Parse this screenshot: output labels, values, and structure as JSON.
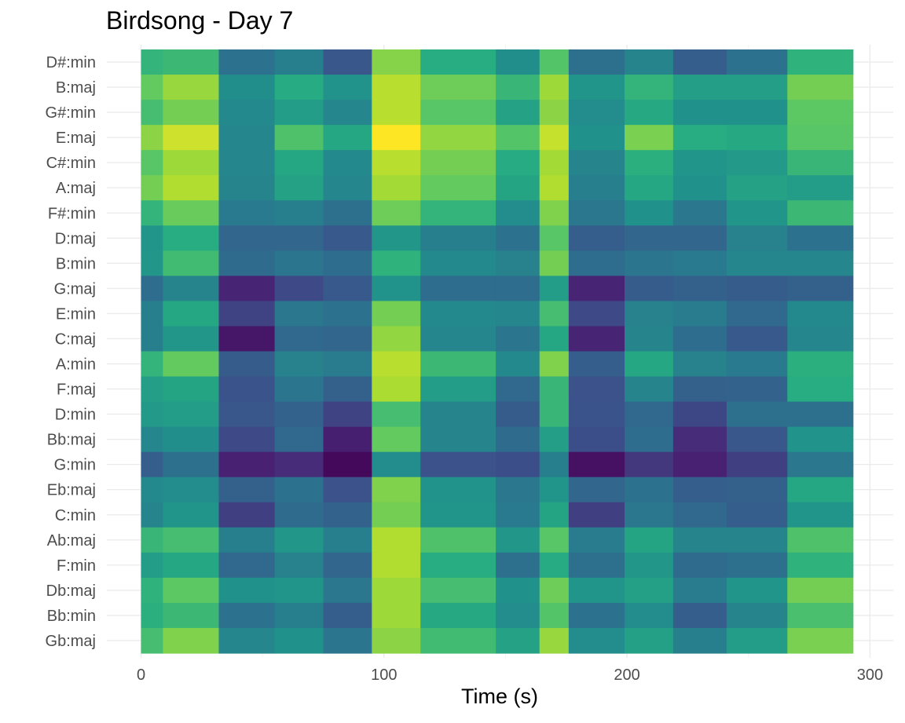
{
  "chart_data": {
    "type": "heatmap",
    "title": "Birdsong - Day 7",
    "xlabel": "Time (s)",
    "ylabel": "",
    "xlim": [
      -2,
      304
    ],
    "x_ticks": [
      0,
      100,
      200,
      300
    ],
    "grid": true,
    "legend": "none",
    "colormap": "viridis",
    "value_range": [
      0,
      1
    ],
    "time_bins": [
      0,
      9,
      32,
      55,
      75,
      95,
      115,
      146,
      164,
      176,
      199,
      219,
      241,
      266,
      293
    ],
    "rows": [
      "D#:min",
      "B:maj",
      "G#:min",
      "E:maj",
      "C#:min",
      "A:maj",
      "F#:min",
      "D:maj",
      "B:min",
      "G:maj",
      "E:min",
      "C:maj",
      "A:min",
      "F:maj",
      "D:min",
      "Bb:maj",
      "G:min",
      "Eb:maj",
      "C:min",
      "Ab:maj",
      "F:min",
      "Db:maj",
      "Bb:min",
      "Gb:maj"
    ],
    "values": [
      [
        0.66,
        0.68,
        0.38,
        0.43,
        0.27,
        0.82,
        0.63,
        0.49,
        0.73,
        0.37,
        0.45,
        0.3,
        0.38,
        0.65
      ],
      [
        0.76,
        0.85,
        0.49,
        0.62,
        0.51,
        0.9,
        0.78,
        0.67,
        0.86,
        0.52,
        0.66,
        0.56,
        0.56,
        0.79
      ],
      [
        0.7,
        0.79,
        0.47,
        0.55,
        0.46,
        0.9,
        0.74,
        0.58,
        0.83,
        0.48,
        0.61,
        0.5,
        0.5,
        0.75
      ],
      [
        0.83,
        0.93,
        0.46,
        0.72,
        0.6,
        1.0,
        0.84,
        0.73,
        0.92,
        0.5,
        0.8,
        0.63,
        0.61,
        0.74
      ],
      [
        0.74,
        0.86,
        0.46,
        0.6,
        0.47,
        0.9,
        0.79,
        0.62,
        0.87,
        0.45,
        0.64,
        0.52,
        0.54,
        0.67
      ],
      [
        0.79,
        0.89,
        0.45,
        0.58,
        0.46,
        0.87,
        0.76,
        0.59,
        0.89,
        0.43,
        0.6,
        0.5,
        0.58,
        0.55
      ],
      [
        0.66,
        0.77,
        0.41,
        0.43,
        0.37,
        0.78,
        0.66,
        0.48,
        0.81,
        0.4,
        0.5,
        0.4,
        0.52,
        0.68
      ],
      [
        0.52,
        0.63,
        0.33,
        0.33,
        0.28,
        0.53,
        0.43,
        0.38,
        0.74,
        0.3,
        0.33,
        0.33,
        0.44,
        0.38
      ],
      [
        0.53,
        0.69,
        0.35,
        0.39,
        0.36,
        0.65,
        0.47,
        0.44,
        0.79,
        0.36,
        0.39,
        0.41,
        0.46,
        0.46
      ],
      [
        0.36,
        0.45,
        0.13,
        0.23,
        0.28,
        0.51,
        0.36,
        0.36,
        0.55,
        0.13,
        0.29,
        0.31,
        0.29,
        0.31
      ],
      [
        0.43,
        0.6,
        0.21,
        0.4,
        0.38,
        0.79,
        0.47,
        0.46,
        0.7,
        0.23,
        0.44,
        0.42,
        0.34,
        0.47
      ],
      [
        0.43,
        0.53,
        0.08,
        0.34,
        0.33,
        0.84,
        0.46,
        0.39,
        0.6,
        0.13,
        0.45,
        0.36,
        0.28,
        0.46
      ],
      [
        0.66,
        0.76,
        0.29,
        0.44,
        0.42,
        0.9,
        0.68,
        0.47,
        0.81,
        0.3,
        0.6,
        0.44,
        0.41,
        0.64
      ],
      [
        0.56,
        0.59,
        0.26,
        0.39,
        0.31,
        0.88,
        0.55,
        0.34,
        0.67,
        0.25,
        0.45,
        0.31,
        0.32,
        0.63
      ],
      [
        0.54,
        0.55,
        0.27,
        0.32,
        0.21,
        0.7,
        0.45,
        0.29,
        0.67,
        0.26,
        0.34,
        0.22,
        0.37,
        0.37
      ],
      [
        0.46,
        0.49,
        0.23,
        0.34,
        0.11,
        0.76,
        0.45,
        0.35,
        0.56,
        0.24,
        0.36,
        0.15,
        0.27,
        0.51
      ],
      [
        0.3,
        0.37,
        0.12,
        0.15,
        0.03,
        0.48,
        0.25,
        0.24,
        0.43,
        0.06,
        0.18,
        0.12,
        0.2,
        0.4
      ],
      [
        0.47,
        0.48,
        0.31,
        0.38,
        0.25,
        0.81,
        0.51,
        0.4,
        0.52,
        0.33,
        0.38,
        0.3,
        0.31,
        0.6
      ],
      [
        0.45,
        0.52,
        0.2,
        0.35,
        0.32,
        0.79,
        0.52,
        0.41,
        0.59,
        0.2,
        0.4,
        0.34,
        0.3,
        0.52
      ],
      [
        0.67,
        0.7,
        0.43,
        0.53,
        0.43,
        0.89,
        0.72,
        0.53,
        0.74,
        0.42,
        0.59,
        0.45,
        0.45,
        0.72
      ],
      [
        0.55,
        0.6,
        0.34,
        0.44,
        0.33,
        0.89,
        0.63,
        0.37,
        0.62,
        0.37,
        0.53,
        0.35,
        0.37,
        0.65
      ],
      [
        0.65,
        0.75,
        0.5,
        0.52,
        0.4,
        0.86,
        0.7,
        0.5,
        0.78,
        0.52,
        0.57,
        0.42,
        0.52,
        0.79
      ],
      [
        0.64,
        0.68,
        0.38,
        0.43,
        0.3,
        0.86,
        0.61,
        0.48,
        0.73,
        0.38,
        0.48,
        0.3,
        0.45,
        0.71
      ],
      [
        0.7,
        0.81,
        0.46,
        0.5,
        0.39,
        0.83,
        0.69,
        0.58,
        0.85,
        0.48,
        0.57,
        0.43,
        0.55,
        0.8
      ]
    ]
  }
}
